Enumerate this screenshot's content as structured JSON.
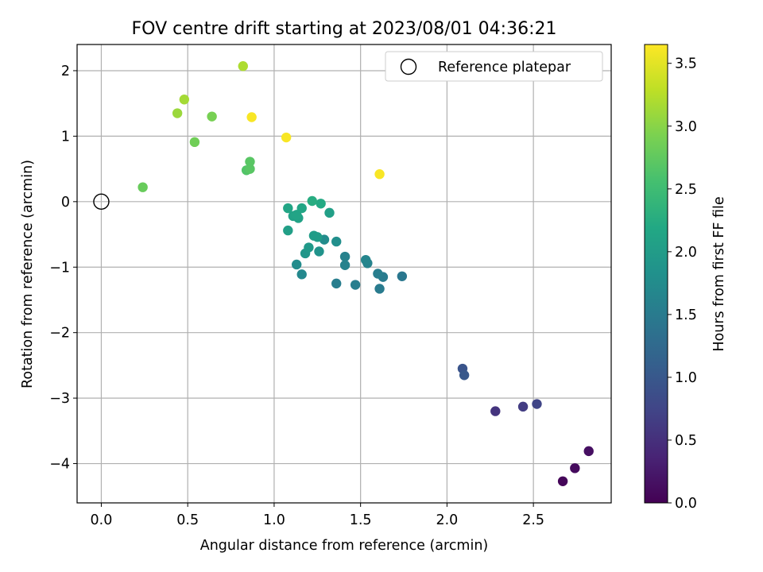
{
  "chart_data": {
    "type": "scatter",
    "title": "FOV centre drift starting at 2023/08/01 04:36:21",
    "xlabel": "Angular distance from reference (arcmin)",
    "ylabel": "Rotation from reference (arcmin)",
    "xlim": [
      -0.14,
      2.95
    ],
    "ylim": [
      -4.6,
      2.4
    ],
    "x_ticks": [
      0.0,
      0.5,
      1.0,
      1.5,
      2.0,
      2.5
    ],
    "x_tick_labels": [
      "0.0",
      "0.5",
      "1.0",
      "1.5",
      "2.0",
      "2.5"
    ],
    "y_ticks": [
      2,
      1,
      0,
      -1,
      -2,
      -3,
      -4
    ],
    "y_tick_labels": [
      "2",
      "1",
      "0",
      "−1",
      "−2",
      "−3",
      "−4"
    ],
    "grid": true,
    "colorbar": {
      "label": "Hours from first FF file",
      "range": [
        0.0,
        3.65
      ],
      "ticks": [
        0.0,
        0.5,
        1.0,
        1.5,
        2.0,
        2.5,
        3.0,
        3.5
      ],
      "tick_labels": [
        "0.0",
        "0.5",
        "1.0",
        "1.5",
        "2.0",
        "2.5",
        "3.0",
        "3.5"
      ],
      "colormap": "viridis"
    },
    "legend": {
      "placement": "top-right",
      "entries": [
        "Reference platepar"
      ]
    },
    "reference_point": {
      "x": 0.0,
      "y": 0.0
    },
    "points": [
      {
        "x": 2.67,
        "y": -4.27,
        "c": 0.05
      },
      {
        "x": 2.74,
        "y": -4.07,
        "c": 0.1
      },
      {
        "x": 2.82,
        "y": -3.81,
        "c": 0.15
      },
      {
        "x": 2.28,
        "y": -3.2,
        "c": 0.55
      },
      {
        "x": 2.44,
        "y": -3.13,
        "c": 0.65
      },
      {
        "x": 2.52,
        "y": -3.09,
        "c": 0.75
      },
      {
        "x": 2.09,
        "y": -2.55,
        "c": 0.95
      },
      {
        "x": 2.1,
        "y": -2.65,
        "c": 1.0
      },
      {
        "x": 1.74,
        "y": -1.14,
        "c": 1.45
      },
      {
        "x": 1.63,
        "y": -1.15,
        "c": 1.5
      },
      {
        "x": 1.61,
        "y": -1.33,
        "c": 1.5
      },
      {
        "x": 1.6,
        "y": -1.1,
        "c": 1.55
      },
      {
        "x": 1.47,
        "y": -1.27,
        "c": 1.55
      },
      {
        "x": 1.36,
        "y": -1.25,
        "c": 1.55
      },
      {
        "x": 1.41,
        "y": -0.97,
        "c": 1.6
      },
      {
        "x": 1.41,
        "y": -0.84,
        "c": 1.6
      },
      {
        "x": 1.54,
        "y": -0.94,
        "c": 1.62
      },
      {
        "x": 1.53,
        "y": -0.89,
        "c": 1.65
      },
      {
        "x": 1.16,
        "y": -1.11,
        "c": 1.7
      },
      {
        "x": 1.13,
        "y": -0.96,
        "c": 1.75
      },
      {
        "x": 1.29,
        "y": -0.58,
        "c": 1.75
      },
      {
        "x": 1.36,
        "y": -0.61,
        "c": 1.8
      },
      {
        "x": 1.26,
        "y": -0.76,
        "c": 1.85
      },
      {
        "x": 1.18,
        "y": -0.79,
        "c": 1.9
      },
      {
        "x": 1.2,
        "y": -0.7,
        "c": 1.95
      },
      {
        "x": 1.23,
        "y": -0.52,
        "c": 2.0
      },
      {
        "x": 1.25,
        "y": -0.54,
        "c": 2.0
      },
      {
        "x": 1.08,
        "y": -0.44,
        "c": 2.05
      },
      {
        "x": 1.32,
        "y": -0.17,
        "c": 2.05
      },
      {
        "x": 1.11,
        "y": -0.22,
        "c": 2.1
      },
      {
        "x": 1.14,
        "y": -0.25,
        "c": 2.1
      },
      {
        "x": 1.13,
        "y": -0.2,
        "c": 2.12
      },
      {
        "x": 1.16,
        "y": -0.1,
        "c": 2.15
      },
      {
        "x": 1.08,
        "y": -0.1,
        "c": 2.15
      },
      {
        "x": 1.27,
        "y": -0.03,
        "c": 2.2
      },
      {
        "x": 1.22,
        "y": 0.01,
        "c": 2.25
      },
      {
        "x": 0.84,
        "y": 0.48,
        "c": 2.65
      },
      {
        "x": 0.86,
        "y": 0.5,
        "c": 2.7
      },
      {
        "x": 0.86,
        "y": 0.61,
        "c": 2.7
      },
      {
        "x": 0.24,
        "y": 0.22,
        "c": 2.8
      },
      {
        "x": 0.54,
        "y": 0.91,
        "c": 2.85
      },
      {
        "x": 0.64,
        "y": 1.3,
        "c": 2.9
      },
      {
        "x": 0.44,
        "y": 1.35,
        "c": 3.1
      },
      {
        "x": 0.48,
        "y": 1.56,
        "c": 3.15
      },
      {
        "x": 0.82,
        "y": 2.07,
        "c": 3.2
      },
      {
        "x": 0.87,
        "y": 1.29,
        "c": 3.62
      },
      {
        "x": 1.07,
        "y": 0.98,
        "c": 3.62
      },
      {
        "x": 1.61,
        "y": 0.42,
        "c": 3.62
      }
    ]
  }
}
